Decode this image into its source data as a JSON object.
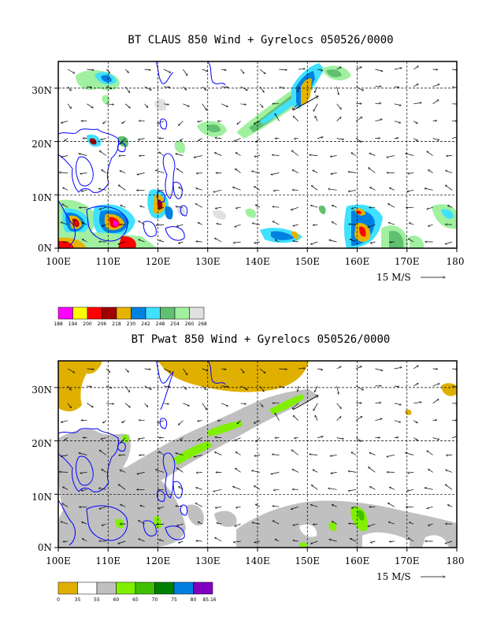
{
  "panel1": {
    "title": "BT CLAUS 850 Wind + Gyrelocs 050526/0000",
    "lat_labels": [
      "30N",
      "20N",
      "10N",
      "0N"
    ],
    "lon_labels": [
      "100E",
      "110E",
      "120E",
      "130E",
      "140E",
      "150E",
      "160E",
      "170E",
      "180"
    ],
    "vector_ref": "15 M/S",
    "colorbar_labels": [
      "188",
      "194",
      "200",
      "206",
      "218",
      "230",
      "242",
      "248",
      "254",
      "260",
      "268"
    ],
    "colorbar_colors": [
      "#ff00ff",
      "#ffff00",
      "#ff0000",
      "#a00000",
      "#e6b400",
      "#0080e0",
      "#40e0ff",
      "#60c070",
      "#a0f0a0",
      "#e0e0e0"
    ]
  },
  "panel2": {
    "title": "BT Pwat 850 Wind + Gyrelocs 050526/0000",
    "lat_labels": [
      "30N",
      "20N",
      "10N",
      "0N"
    ],
    "lon_labels": [
      "100E",
      "110E",
      "120E",
      "130E",
      "140E",
      "150E",
      "160E",
      "170E",
      "180"
    ],
    "vector_ref": "15 M/S",
    "colorbar_labels": [
      "0",
      "35",
      "55",
      "60",
      "65",
      "70",
      "75",
      "80",
      "85.16"
    ],
    "colorbar_colors": [
      "#e0b000",
      "#ffffff",
      "#c0c0c0",
      "#80f000",
      "#40c000",
      "#008000",
      "#0080e0",
      "#8000c0"
    ]
  },
  "map": {
    "lon_range": [
      100,
      180
    ],
    "lat_range": [
      0,
      35
    ],
    "coast_color": "#0000ff",
    "grid_style": "dashed"
  }
}
